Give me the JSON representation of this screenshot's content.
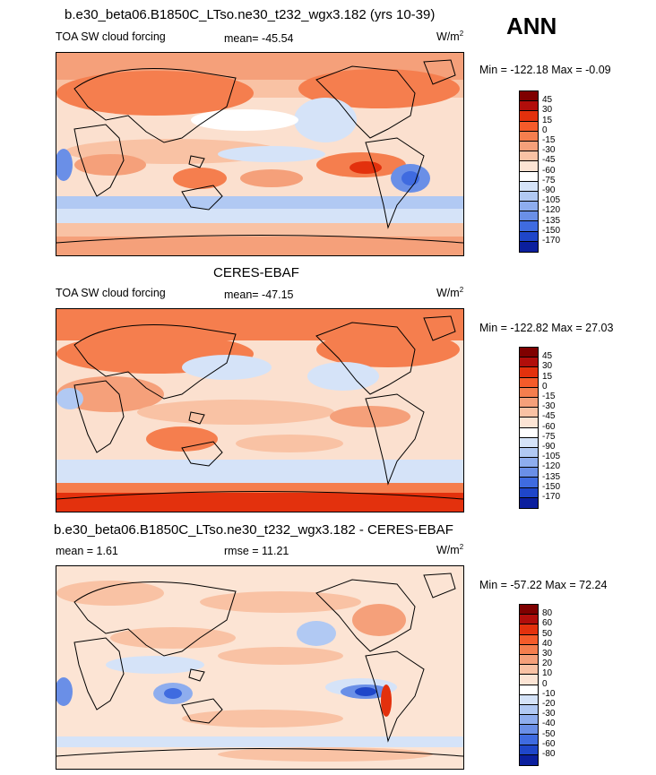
{
  "season": "ANN",
  "chart_data": [
    {
      "type": "heatmap",
      "title": "b.e30_beta06.B1850C_LTso.ne30_t232_wgx3.182 (yrs 10-39)",
      "left_label": "TOA SW cloud forcing",
      "center_label": "mean= -45.54",
      "units_base": "W/m",
      "units_exp": "2",
      "minmax": "Min = -122.18 Max =  -0.09",
      "levels": [
        "45",
        "30",
        "15",
        "0",
        "-15",
        "-30",
        "-45",
        "-60",
        "-75",
        "-90",
        "-105",
        "-120",
        "-135",
        "-150",
        "-170"
      ],
      "colors": [
        "#7f0000",
        "#b10e0b",
        "#e3310d",
        "#f55b2a",
        "#f57e4e",
        "#f5a07a",
        "#f9c2a4",
        "#fce4d4",
        "#ffffff",
        "#d5e3f8",
        "#b1c9f3",
        "#8eadee",
        "#6a8fe7",
        "#3f6be0",
        "#1f46c9",
        "#0b1f9e"
      ],
      "min": -122.18,
      "max": -0.09,
      "mean": -45.54
    },
    {
      "type": "heatmap",
      "title": "CERES-EBAF",
      "left_label": "TOA SW cloud forcing",
      "center_label": "mean= -47.15",
      "units_base": "W/m",
      "units_exp": "2",
      "minmax": "Min = -122.82 Max =  27.03",
      "levels": [
        "45",
        "30",
        "15",
        "0",
        "-15",
        "-30",
        "-45",
        "-60",
        "-75",
        "-90",
        "-105",
        "-120",
        "-135",
        "-150",
        "-170"
      ],
      "colors": [
        "#7f0000",
        "#b10e0b",
        "#e3310d",
        "#f55b2a",
        "#f57e4e",
        "#f5a07a",
        "#f9c2a4",
        "#fce4d4",
        "#ffffff",
        "#d5e3f8",
        "#b1c9f3",
        "#8eadee",
        "#6a8fe7",
        "#3f6be0",
        "#1f46c9",
        "#0b1f9e"
      ],
      "min": -122.82,
      "max": 27.03,
      "mean": -47.15
    },
    {
      "type": "heatmap",
      "title": "b.e30_beta06.B1850C_LTso.ne30_t232_wgx3.182 - CERES-EBAF",
      "left_label": "mean =   1.61",
      "center_label": "rmse =  11.21",
      "units_base": "W/m",
      "units_exp": "2",
      "minmax": "Min = -57.22 Max =  72.24",
      "levels": [
        "80",
        "60",
        "50",
        "40",
        "30",
        "20",
        "10",
        "0",
        "-10",
        "-20",
        "-30",
        "-40",
        "-50",
        "-60",
        "-80"
      ],
      "colors": [
        "#7f0000",
        "#b10e0b",
        "#e3310d",
        "#f55b2a",
        "#f57e4e",
        "#f5a07a",
        "#f9c2a4",
        "#fce4d4",
        "#ffffff",
        "#d5e3f8",
        "#b1c9f3",
        "#8eadee",
        "#6a8fe7",
        "#3f6be0",
        "#1f46c9",
        "#0b1f9e"
      ],
      "min": -57.22,
      "max": 72.24,
      "mean": 1.61,
      "rmse": 11.21
    }
  ]
}
